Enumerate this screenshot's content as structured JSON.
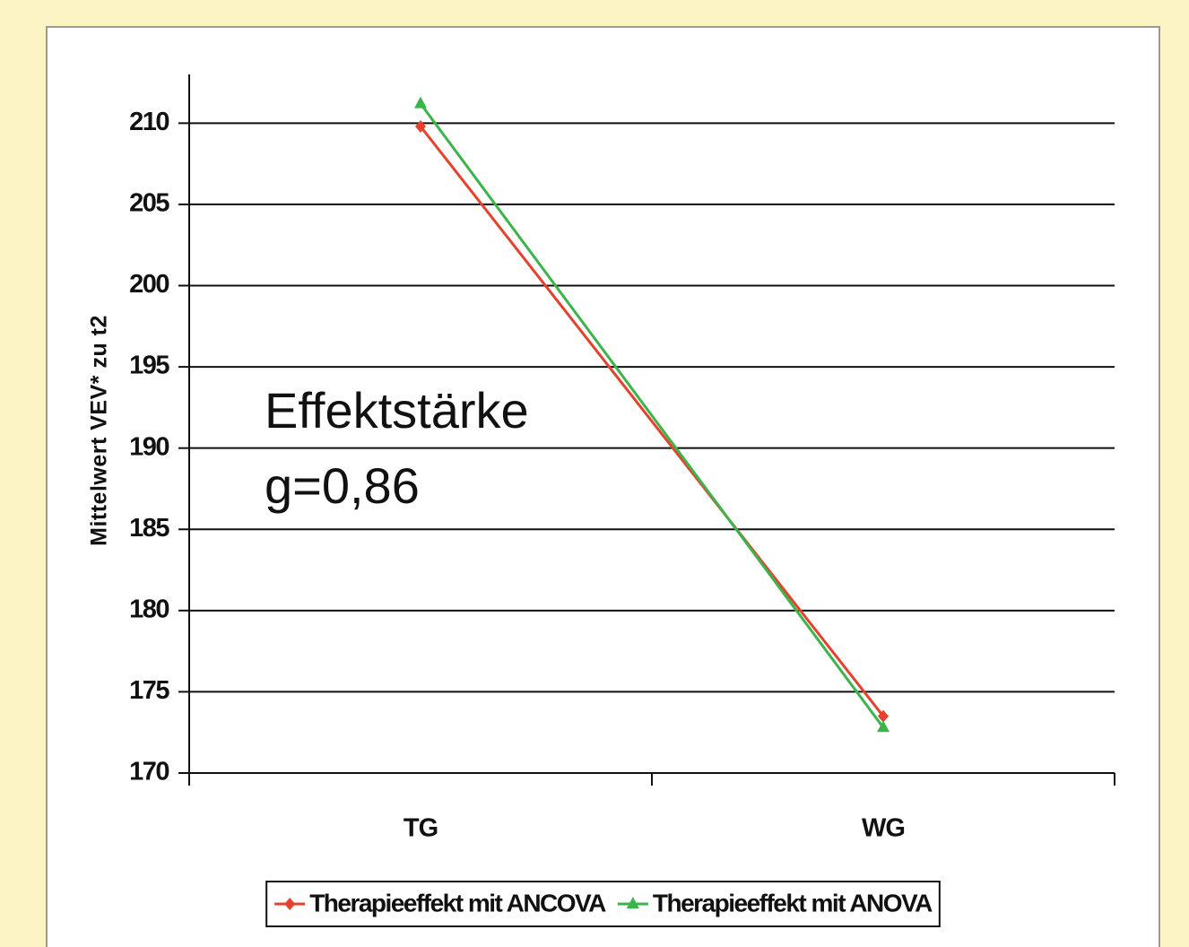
{
  "chart_data": {
    "type": "line",
    "ylabel": "Mittelwert VEV* zu t2",
    "annotations": [
      "Effektstärke",
      "g=0,86"
    ],
    "categories": [
      "TG",
      "WG"
    ],
    "series": [
      {
        "name": "Therapieeffekt mit ANCOVA",
        "color": "#e5412c",
        "marker": "diamond",
        "values": [
          209.8,
          173.5
        ]
      },
      {
        "name": "Therapieeffekt mit ANOVA",
        "color": "#3bb44b",
        "marker": "triangle",
        "values": [
          211.2,
          172.8
        ]
      }
    ],
    "ylim": [
      170,
      213
    ],
    "yticks": [
      170,
      175,
      180,
      185,
      190,
      195,
      200,
      205,
      210
    ],
    "grid": true,
    "legend": "bottom"
  }
}
